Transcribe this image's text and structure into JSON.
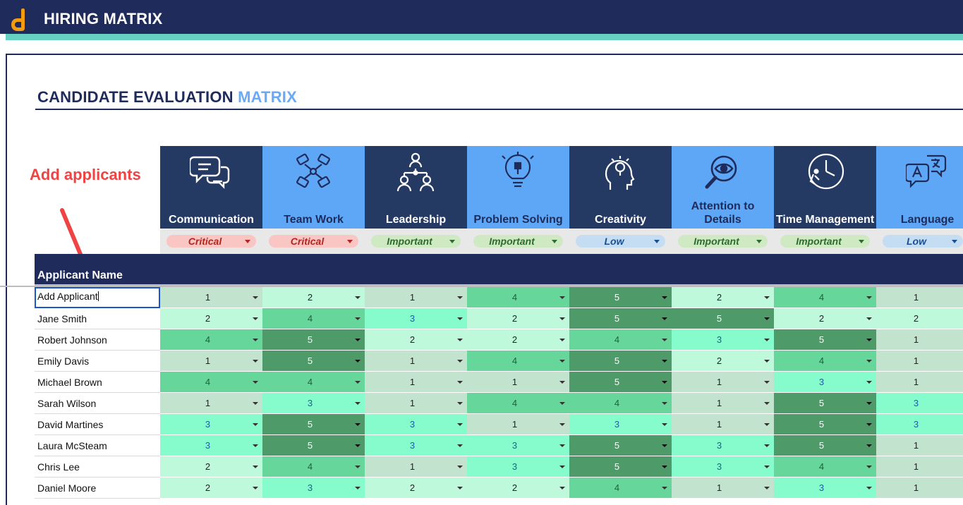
{
  "app": {
    "title": "HIRING MATRIX"
  },
  "page": {
    "title_main": "CANDIDATE EVALUATION",
    "title_accent": "MATRIX"
  },
  "annotation": {
    "text": "Add applicants"
  },
  "colors": {
    "navy": "#1f2c5b",
    "teal": "#66d1c2",
    "accent_blue": "#6aa9f5",
    "annotation_red": "#ee4444"
  },
  "criteria": [
    {
      "label": "Communication",
      "icon": "speech-bubbles-icon",
      "priority": "Critical"
    },
    {
      "label": "Team Work",
      "icon": "team-hands-icon",
      "priority": "Critical"
    },
    {
      "label": "Leadership",
      "icon": "org-people-icon",
      "priority": "Important"
    },
    {
      "label": "Problem Solving",
      "icon": "lightbulb-puzzle-icon",
      "priority": "Important"
    },
    {
      "label": "Creativity",
      "icon": "creative-head-icon",
      "priority": "Low"
    },
    {
      "label": "Attention to Details",
      "icon": "magnifier-eye-icon",
      "priority": "Important"
    },
    {
      "label": "Time Management",
      "icon": "clock-runner-icon",
      "priority": "Important"
    },
    {
      "label": "Language",
      "icon": "translate-bubbles-icon",
      "priority": "Low"
    }
  ],
  "table": {
    "name_header": "Applicant Name",
    "rows": [
      {
        "name": "Add Applicant",
        "scores": [
          1,
          2,
          1,
          4,
          5,
          2,
          4,
          1
        ]
      },
      {
        "name": "Jane Smith",
        "scores": [
          2,
          4,
          3,
          2,
          5,
          5,
          2,
          2
        ]
      },
      {
        "name": "Robert Johnson",
        "scores": [
          4,
          5,
          2,
          2,
          4,
          3,
          5,
          1
        ]
      },
      {
        "name": "Emily Davis",
        "scores": [
          1,
          5,
          1,
          4,
          5,
          2,
          4,
          1
        ]
      },
      {
        "name": "Michael Brown",
        "scores": [
          4,
          4,
          1,
          1,
          5,
          1,
          3,
          1
        ]
      },
      {
        "name": "Sarah Wilson",
        "scores": [
          1,
          3,
          1,
          4,
          4,
          1,
          5,
          3
        ]
      },
      {
        "name": "David Martines",
        "scores": [
          3,
          5,
          3,
          1,
          3,
          1,
          5,
          3
        ]
      },
      {
        "name": "Laura McSteam",
        "scores": [
          3,
          5,
          3,
          3,
          5,
          3,
          5,
          1
        ]
      },
      {
        "name": "Chris Lee",
        "scores": [
          2,
          4,
          1,
          3,
          5,
          3,
          4,
          1
        ]
      },
      {
        "name": "Daniel Moore",
        "scores": [
          2,
          3,
          2,
          2,
          4,
          1,
          3,
          1
        ]
      }
    ]
  }
}
